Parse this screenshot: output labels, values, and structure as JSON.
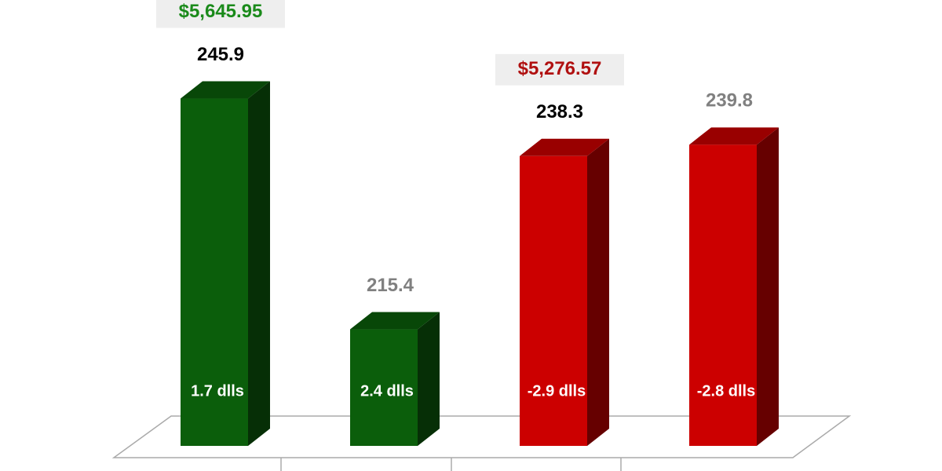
{
  "chart_data": {
    "type": "bar3d",
    "categories": [
      null,
      null,
      null,
      null
    ],
    "values": [
      245.9,
      215.4,
      238.3,
      239.8
    ],
    "colors": [
      "#0b5e0b",
      "#0b5e0b",
      "#cc0000",
      "#cc0000"
    ],
    "value_label_colors": [
      "#000000",
      "#808080",
      "#000000",
      "#808080"
    ],
    "bar_labels": [
      "1.7 dlls",
      "2.4 dlls",
      "-2.9 dlls",
      "-2.8 dlls"
    ],
    "group_labels": [
      {
        "text": "$5,645.95",
        "color": "#1a8a1a"
      },
      {
        "text": "$5,276.57",
        "color": "#b01010"
      }
    ],
    "ylim": [
      200,
      250
    ]
  }
}
